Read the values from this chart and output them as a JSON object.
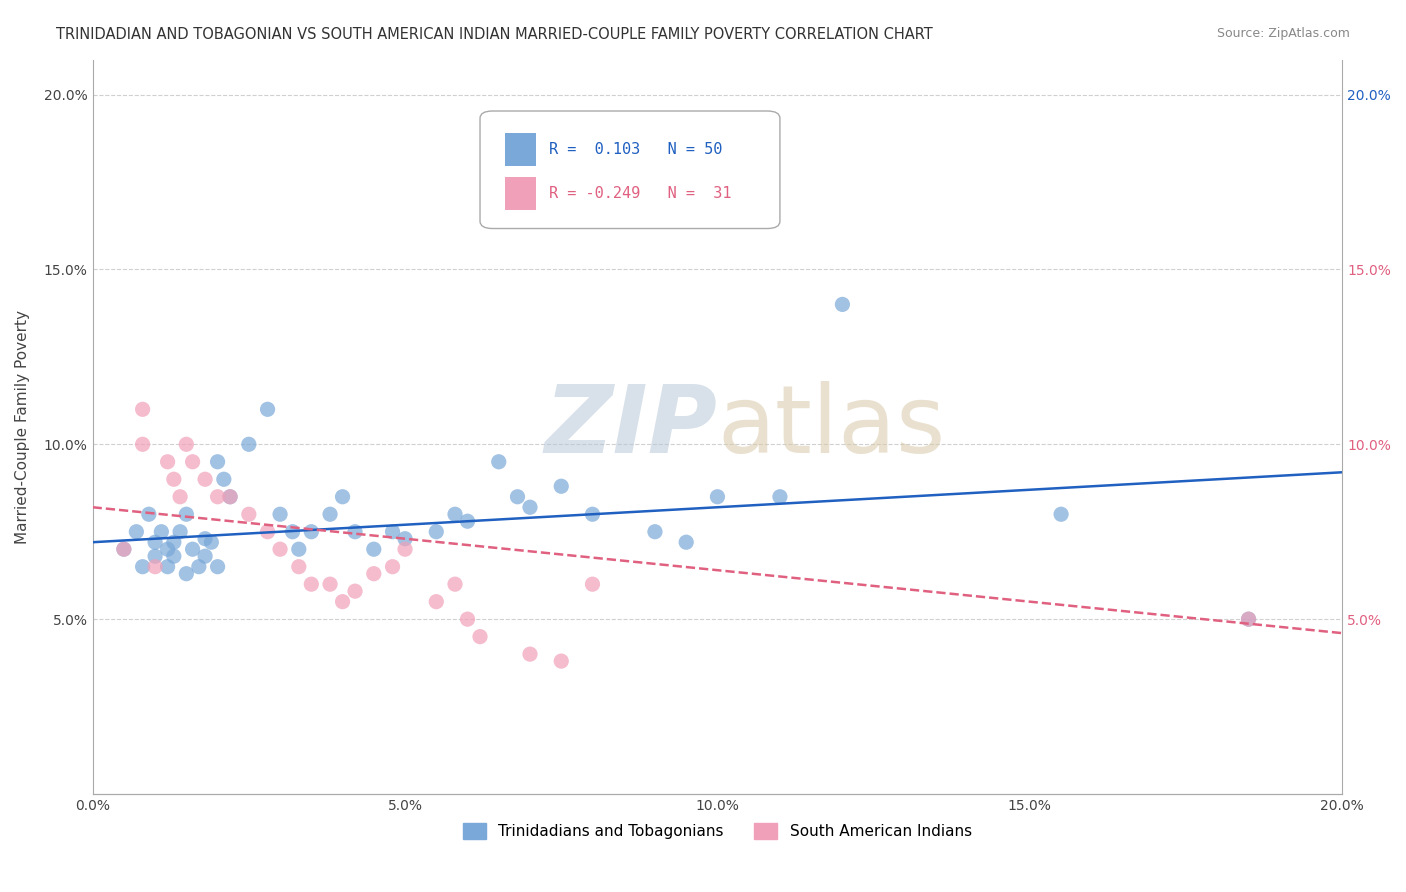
{
  "title": "TRINIDADIAN AND TOBAGONIAN VS SOUTH AMERICAN INDIAN MARRIED-COUPLE FAMILY POVERTY CORRELATION CHART",
  "source_text": "Source: ZipAtlas.com",
  "ylabel": "Married-Couple Family Poverty",
  "xlabel": "",
  "xlim": [
    0.0,
    0.2
  ],
  "ylim": [
    0.0,
    0.21
  ],
  "xticks": [
    0.0,
    0.05,
    0.1,
    0.15,
    0.2
  ],
  "yticks": [
    0.0,
    0.05,
    0.1,
    0.15,
    0.2
  ],
  "xticklabels": [
    "0.0%",
    "5.0%",
    "10.0%",
    "15.0%",
    "20.0%"
  ],
  "yticklabels": [
    "",
    "5.0%",
    "10.0%",
    "15.0%",
    "20.0%"
  ],
  "blue_R": 0.103,
  "blue_N": 50,
  "pink_R": -0.249,
  "pink_N": 31,
  "blue_color": "#7aa8d8",
  "pink_color": "#f0a0b8",
  "blue_line_color": "#2060c0",
  "pink_line_color": "#e06080",
  "watermark_zip": "ZIP",
  "watermark_atlas": "atlas",
  "background_color": "#ffffff",
  "grid_color": "#d0d0d0",
  "title_fontsize": 11,
  "legend_label_blue": "Trinidadians and Tobagonians",
  "legend_label_pink": "South American Indians",
  "blue_x": [
    0.005,
    0.007,
    0.008,
    0.009,
    0.01,
    0.01,
    0.011,
    0.012,
    0.012,
    0.013,
    0.013,
    0.014,
    0.015,
    0.015,
    0.016,
    0.017,
    0.018,
    0.018,
    0.019,
    0.02,
    0.02,
    0.021,
    0.022,
    0.025,
    0.028,
    0.03,
    0.032,
    0.033,
    0.035,
    0.038,
    0.04,
    0.042,
    0.045,
    0.048,
    0.05,
    0.055,
    0.058,
    0.06,
    0.065,
    0.068,
    0.07,
    0.075,
    0.08,
    0.09,
    0.095,
    0.1,
    0.11,
    0.12,
    0.155,
    0.185
  ],
  "blue_y": [
    0.07,
    0.075,
    0.065,
    0.08,
    0.072,
    0.068,
    0.075,
    0.07,
    0.065,
    0.068,
    0.072,
    0.075,
    0.08,
    0.063,
    0.07,
    0.065,
    0.073,
    0.068,
    0.072,
    0.065,
    0.095,
    0.09,
    0.085,
    0.1,
    0.11,
    0.08,
    0.075,
    0.07,
    0.075,
    0.08,
    0.085,
    0.075,
    0.07,
    0.075,
    0.073,
    0.075,
    0.08,
    0.078,
    0.095,
    0.085,
    0.082,
    0.088,
    0.08,
    0.075,
    0.072,
    0.085,
    0.085,
    0.14,
    0.08,
    0.05
  ],
  "pink_x": [
    0.005,
    0.008,
    0.008,
    0.01,
    0.012,
    0.013,
    0.014,
    0.015,
    0.016,
    0.018,
    0.02,
    0.022,
    0.025,
    0.028,
    0.03,
    0.033,
    0.035,
    0.038,
    0.04,
    0.042,
    0.045,
    0.048,
    0.05,
    0.055,
    0.058,
    0.06,
    0.062,
    0.07,
    0.075,
    0.08,
    0.185
  ],
  "pink_y": [
    0.07,
    0.11,
    0.1,
    0.065,
    0.095,
    0.09,
    0.085,
    0.1,
    0.095,
    0.09,
    0.085,
    0.085,
    0.08,
    0.075,
    0.07,
    0.065,
    0.06,
    0.06,
    0.055,
    0.058,
    0.063,
    0.065,
    0.07,
    0.055,
    0.06,
    0.05,
    0.045,
    0.04,
    0.038,
    0.06,
    0.05
  ],
  "blue_intercept": 0.072,
  "blue_slope": 0.1,
  "pink_intercept": 0.082,
  "pink_slope": -0.18
}
